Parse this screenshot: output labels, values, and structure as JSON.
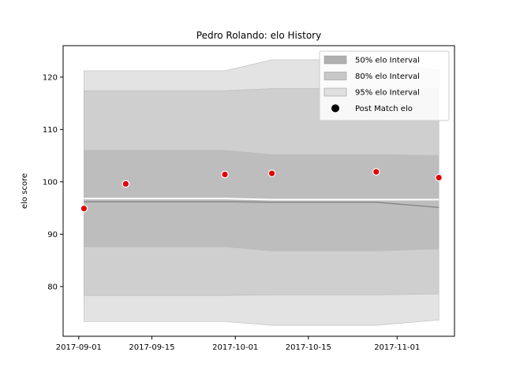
{
  "chart_data": {
    "type": "area",
    "title": "Pedro Rolando: elo History",
    "xlabel": "",
    "ylabel": "elo score",
    "xlim": [
      "2017-08-29",
      "2017-11-12"
    ],
    "ylim": [
      70.5,
      126
    ],
    "x_ticks": [
      "2017-09-01",
      "2017-09-15",
      "2017-10-01",
      "2017-10-15",
      "2017-11-01"
    ],
    "y_ticks": [
      80,
      90,
      100,
      110,
      120
    ],
    "grid": false,
    "legend_position": "top-right",
    "x": [
      "2017-09-02",
      "2017-09-10",
      "2017-09-29",
      "2017-10-08",
      "2017-10-28",
      "2017-11-09"
    ],
    "bands": [
      {
        "name": "95% elo Interval",
        "color": "#e3e3e3",
        "lower": [
          73.3,
          73.3,
          73.3,
          72.6,
          72.6,
          73.6
        ],
        "upper": [
          121.2,
          121.2,
          121.2,
          123.3,
          123.3,
          121.3
        ]
      },
      {
        "name": "80% elo Interval",
        "color": "#cfcfcf",
        "lower": [
          78.3,
          78.3,
          78.3,
          78.4,
          78.4,
          78.6
        ],
        "upper": [
          117.4,
          117.4,
          117.4,
          117.8,
          117.8,
          117.8
        ]
      },
      {
        "name": "50% elo Interval",
        "color": "#bdbdbd",
        "lower": [
          87.6,
          87.6,
          87.6,
          86.8,
          86.8,
          87.2
        ],
        "upper": [
          106.0,
          106.0,
          106.0,
          105.2,
          105.2,
          105.0
        ]
      }
    ],
    "mean_line": {
      "color": "#888888",
      "values": [
        96.2,
        96.2,
        96.2,
        96.1,
        96.1,
        95.1
      ]
    },
    "median_line": {
      "color": "#ffffff",
      "values": [
        96.8,
        96.8,
        96.8,
        96.6,
        96.6,
        96.6
      ]
    },
    "points": {
      "name": "Post Match elo",
      "color": "#e00000",
      "x": [
        "2017-09-02",
        "2017-09-10",
        "2017-09-29",
        "2017-10-08",
        "2017-10-28",
        "2017-11-09"
      ],
      "y": [
        94.9,
        99.6,
        101.4,
        101.6,
        101.9,
        100.8
      ]
    },
    "legend": [
      {
        "label": "50% elo Interval",
        "kind": "patch",
        "color": "#b0b0b0"
      },
      {
        "label": "80% elo Interval",
        "kind": "patch",
        "color": "#c8c8c8"
      },
      {
        "label": "95% elo Interval",
        "kind": "patch",
        "color": "#e0e0e0"
      },
      {
        "label": "Post Match elo",
        "kind": "marker",
        "color": "#000000"
      }
    ]
  }
}
